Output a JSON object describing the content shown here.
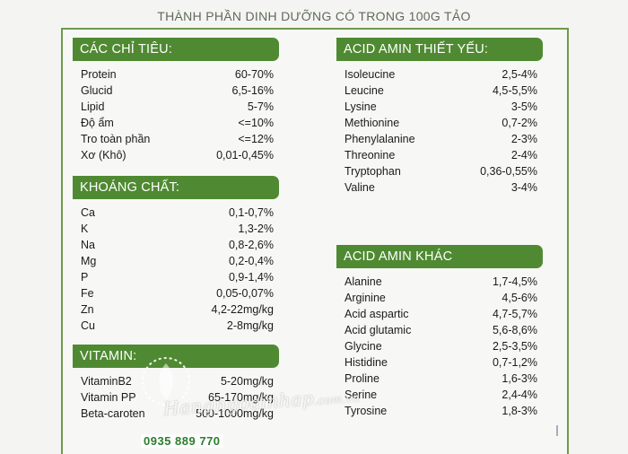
{
  "title": "THÀNH PHẦN DINH DƯỠNG CÓ TRONG 100G TẢO",
  "sections": {
    "chi_tieu": {
      "header": "CÁC CHỈ TIÊU:",
      "rows": [
        {
          "name": "Protein",
          "value": "60-70%"
        },
        {
          "name": "Glucid",
          "value": "6,5-16%"
        },
        {
          "name": "Lipid",
          "value": "5-7%"
        },
        {
          "name": "Độ ẩm",
          "value": "<=10%"
        },
        {
          "name": "Tro toàn phần",
          "value": "<=12%"
        },
        {
          "name": "Xơ (Khô)",
          "value": "0,01-0,45%"
        }
      ]
    },
    "khoang_chat": {
      "header": "KHOÁNG CHẤT:",
      "rows": [
        {
          "name": "Ca",
          "value": "0,1-0,7%"
        },
        {
          "name": "K",
          "value": "1,3-2%"
        },
        {
          "name": "Na",
          "value": "0,8-2,6%"
        },
        {
          "name": "Mg",
          "value": "0,2-0,4%"
        },
        {
          "name": "P",
          "value": "0,9-1,4%"
        },
        {
          "name": "Fe",
          "value": "0,05-0,07%"
        },
        {
          "name": "Zn",
          "value": "4,2-22mg/kg"
        },
        {
          "name": "Cu",
          "value": "2-8mg/kg"
        }
      ]
    },
    "vitamin": {
      "header": "VITAMIN:",
      "rows": [
        {
          "name": "VitaminB2",
          "value": "5-20mg/kg"
        },
        {
          "name": "Vitamin PP",
          "value": "65-170mg/kg"
        },
        {
          "name": "Beta-caroten",
          "value": "500-1000mg/kg"
        }
      ]
    },
    "acid_amin_thiet_yeu": {
      "header": "ACID AMIN THIẾT YẾU:",
      "rows": [
        {
          "name": "Isoleucine",
          "value": "2,5-4%"
        },
        {
          "name": "Leucine",
          "value": "4,5-5,5%"
        },
        {
          "name": "Lysine",
          "value": "3-5%"
        },
        {
          "name": "Methionine",
          "value": "0,7-2%"
        },
        {
          "name": "Phenylalanine",
          "value": "2-3%"
        },
        {
          "name": "Threonine",
          "value": "2-4%"
        },
        {
          "name": "Tryptophan",
          "value": "0,36-0,55%"
        },
        {
          "name": "Valine",
          "value": "3-4%"
        }
      ]
    },
    "acid_amin_khac": {
      "header": "ACID AMIN KHÁC",
      "rows": [
        {
          "name": "Alanine",
          "value": "1,7-4,5%"
        },
        {
          "name": "Arginine",
          "value": "4,5-6%"
        },
        {
          "name": "Acid aspartic",
          "value": "4,7-5,7%"
        },
        {
          "name": "Acid glutamic",
          "value": "5,6-8,6%"
        },
        {
          "name": "Glycine",
          "value": "2,5-3,5%"
        },
        {
          "name": "Histidine",
          "value": "0,7-1,2%"
        },
        {
          "name": "Proline",
          "value": "1,6-3%"
        },
        {
          "name": "Serine",
          "value": "2,4-4%"
        },
        {
          "name": "Tyrosine",
          "value": "1,8-3%"
        }
      ]
    }
  },
  "watermark": {
    "brand": "Hangngoainhap",
    "domain": ".com.vn",
    "phone": "0935 889 770"
  },
  "colors": {
    "header_green": "#4f8a32",
    "frame_green": "#6f9a4e",
    "phone_green": "#2e7d2e"
  }
}
